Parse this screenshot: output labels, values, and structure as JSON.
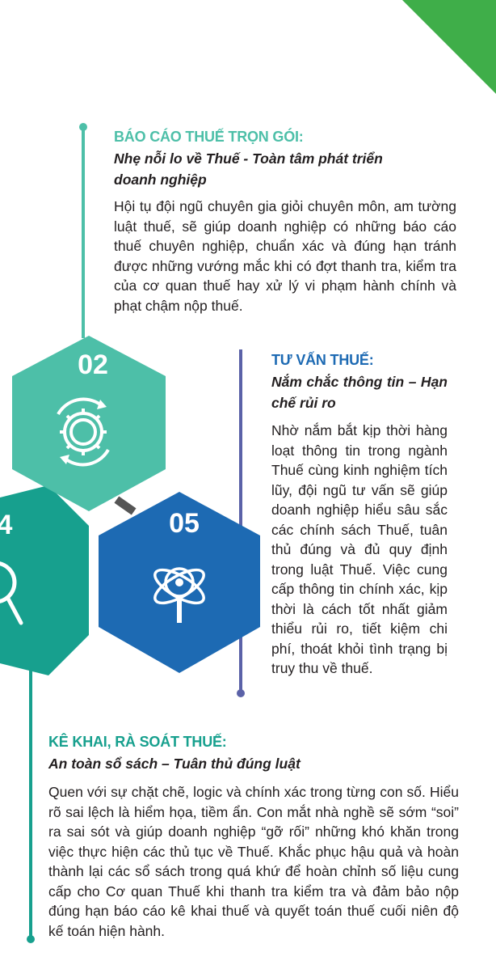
{
  "section1": {
    "title": "BÁO CÁO THUẾ TRỌN GÓI:",
    "subtitle": "Nhẹ nỗi lo về Thuế - Toàn tâm phát triển doanh nghiệp",
    "body": "Hội tụ đội ngũ chuyên gia giỏi chuyên môn, am tường luật thuế, sẽ giúp doanh nghiệp có những báo cáo thuế chuyên nghiệp, chuẩn xác và đúng hạn tránh được những vướng mắc khi có đợt thanh tra, kiểm tra của cơ quan thuế hay xử lý vi phạm hành chính và phạt chậm nộp thuế."
  },
  "section2": {
    "title": "TƯ VẤN THUẾ:",
    "subtitle": "Nắm chắc thông tin – Hạn chế rủi ro",
    "body": "Nhờ nắm bắt kịp thời hàng loạt thông tin trong ngành Thuế cùng kinh nghiệm tích lũy, đội ngũ tư vấn sẽ giúp doanh nghiệp hiểu sâu sắc các chính sách Thuế, tuân thủ đúng và đủ quy định trong luật Thuế. Việc cung cấp thông tin chính xác, kịp thời là cách tốt nhất giảm thiểu rủi ro, tiết kiệm chi phí, thoát khỏi tình trạng bị truy thu về thuế."
  },
  "section3": {
    "title": "KÊ KHAI, RÀ SOÁT THUẾ:",
    "subtitle": "An toàn sổ sách – Tuân thủ đúng luật",
    "body": "Quen với sự chặt chẽ, logic và chính xác trong từng con số. Hiểu rõ sai lệch là hiểm họa, tiềm ẩn. Con mắt nhà nghề sẽ sớm “soi” ra sai sót và giúp doanh nghiệp “gỡ rối” những khó khăn trong việc thực hiện các thủ tục về Thuế. Khắc phục hậu quả và hoàn thành lại các sổ sách trong quá khứ để hoàn chỉnh số liệu cung cấp cho Cơ quan Thuế khi thanh tra kiểm tra và đảm bảo nộp đúng hạn báo cáo kê khai thuế và quyết toán thuế cuối niên độ kế toán hiện hành."
  },
  "hexagons": {
    "h02": {
      "number": "02",
      "icon": "gear-cycle-icon",
      "color": "#4dbfa8"
    },
    "h05": {
      "number": "05",
      "icon": "atom-magnifier-icon",
      "color": "#1d6ab3"
    },
    "h04": {
      "number": "4",
      "icon": "magnifier-icon",
      "color": "#17a08e"
    }
  },
  "colors": {
    "teal": "#4dbfa8",
    "blue": "#1d6ab3",
    "green": "#3fae49",
    "dark_teal": "#17a08e",
    "line_blue": "#5b62a8"
  }
}
